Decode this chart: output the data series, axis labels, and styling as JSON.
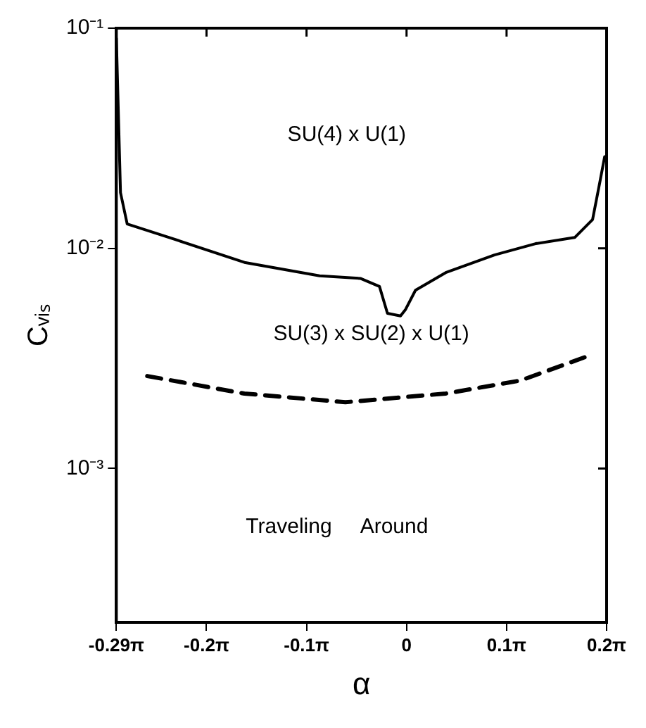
{
  "chart_data": {
    "type": "line",
    "xlabel": "α",
    "ylabel": "Cᵥᵢₛ",
    "log": "y",
    "grid": false,
    "marker": "none",
    "xlim": [
      -0.911,
      0.628
    ],
    "ylim": [
      0.0002,
      0.1
    ],
    "xticks": [
      {
        "value": -0.911,
        "label": "-0.29π"
      },
      {
        "value": -0.628,
        "label": "-0.2π"
      },
      {
        "value": -0.314,
        "label": "-0.1π"
      },
      0,
      {
        "value": 0.314,
        "label": "0.1π"
      },
      {
        "value": 0.628,
        "label": "0.2π"
      }
    ],
    "yticks": [
      {
        "value": 0.1,
        "label": "10⁻¹"
      },
      {
        "value": 0.01,
        "label": "10⁻²"
      },
      {
        "value": 0.001,
        "label": "10⁻³"
      }
    ],
    "series": [
      {
        "color": "#000000",
        "line_style": "solid",
        "x": [
          -0.911,
          -0.898,
          -0.877,
          -0.745,
          -0.509,
          -0.273,
          -0.145,
          -0.085,
          -0.06,
          -0.019,
          -0.003,
          0.028,
          0.123,
          0.276,
          0.405,
          0.528,
          0.584,
          0.606,
          0.622
        ],
        "values": [
          0.09,
          0.0179,
          0.0129,
          0.0112,
          0.00863,
          0.0075,
          0.0073,
          0.00671,
          0.00507,
          0.00493,
          0.00528,
          0.00645,
          0.00776,
          0.00933,
          0.0105,
          0.0112,
          0.0135,
          0.0197,
          0.0261
        ]
      },
      {
        "color": "#000000",
        "line_style": "dashed",
        "x": [
          -0.814,
          -0.509,
          -0.192,
          0.123,
          0.358,
          0.559
        ],
        "values": [
          0.00263,
          0.00219,
          0.002,
          0.00219,
          0.00251,
          0.0032
        ]
      }
    ],
    "annotations": [
      "SU(4) x U(1)",
      "SU(3) x SU(2) x U(1)",
      "Traveling     Around"
    ]
  }
}
